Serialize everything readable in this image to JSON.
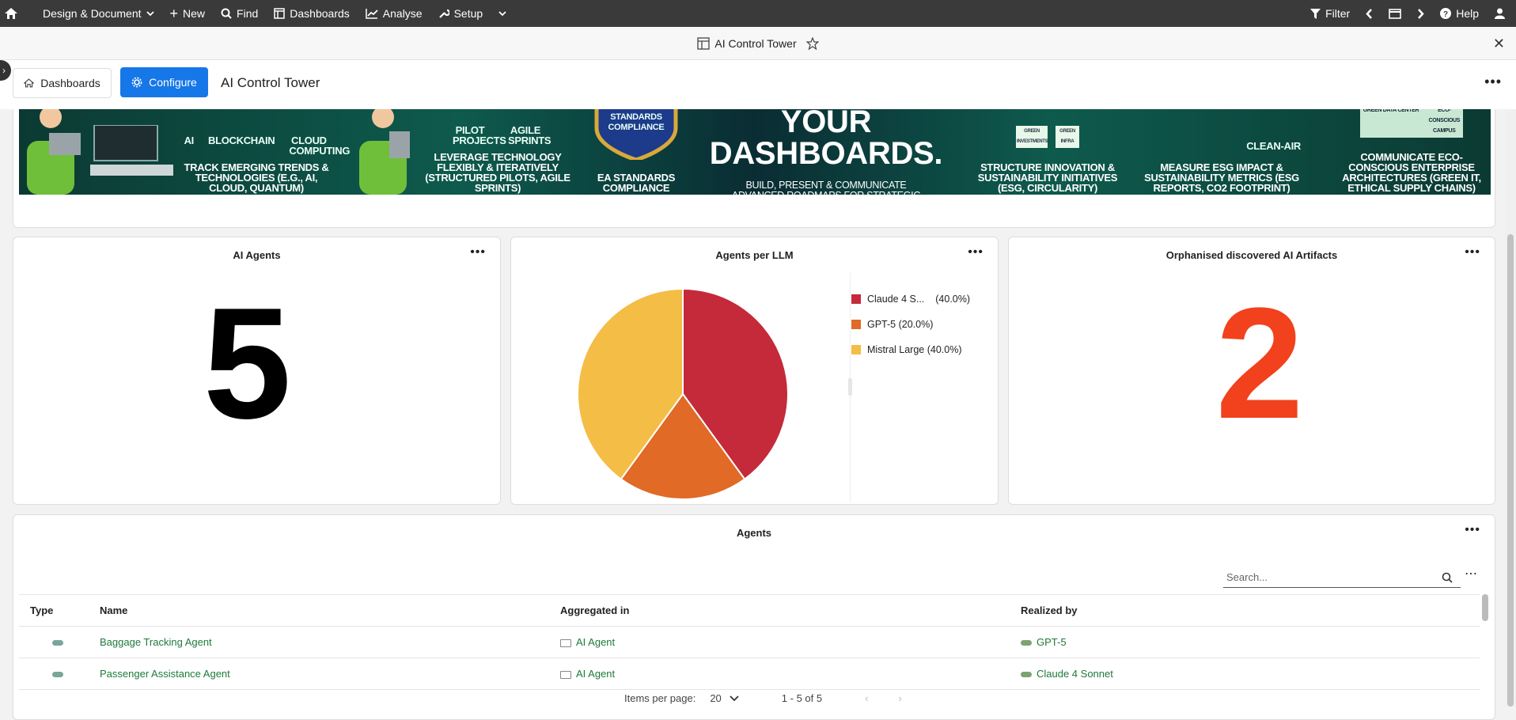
{
  "topnav": {
    "items": [
      {
        "label": "Design & Document",
        "icon": "chevron-down-icon"
      },
      {
        "label": "New",
        "icon": "plus-icon"
      },
      {
        "label": "Find",
        "icon": "search-icon"
      },
      {
        "label": "Dashboards",
        "icon": "dashboard-icon"
      },
      {
        "label": "Analyse",
        "icon": "chart-line-icon"
      },
      {
        "label": "Setup",
        "icon": "wrench-icon"
      }
    ],
    "filter_label": "Filter",
    "help_label": "Help"
  },
  "window": {
    "title": "AI Control Tower"
  },
  "toolbar": {
    "dashboards_label": "Dashboards",
    "configure_label": "Configure",
    "page_title": "AI Control Tower"
  },
  "banner": {
    "headline": "YOUR DASHBOARDS.",
    "subline": "BUILD, PRESENT & COMMUNICATE ADVANCED ROADMAPS FOR STRATEGIC INVESTMENT & TRANSFORMATION VIEWS.",
    "tiles": [
      {
        "icons": [
          "AI",
          "BLOCKCHAIN",
          "CLOUD COMPUTING"
        ],
        "caption": "TRACK EMERGING TRENDS & TECHNOLOGIES (e.g., AI, CLOUD, QUANTUM)"
      },
      {
        "icons": [
          "PILOT PROJECTS",
          "AGILE SPRINTS"
        ],
        "caption": "LEVERAGE TECHNOLOGY FLEXIBLY & ITERATIVELY (STRUCTURED PILOTS, AGILE SPRINTS)"
      },
      {
        "icons": [
          "STANDARDS COMPLIANCE"
        ],
        "caption": "EA STANDARDS COMPLIANCE"
      },
      {
        "icons": [
          "GREEN INVESTMENTS",
          "GREEN INFRA"
        ],
        "caption": "STRUCTURE INNOVATION & SUSTAINABILITY INITIATIVES (ESG, CIRCULARITY)"
      },
      {
        "icons": [
          "CLEAN-AIR"
        ],
        "caption": "MEASURE ESG IMPACT & SUSTAINABILITY METRICS (ESG REPORTS, CO2 FOOTPRINT)"
      },
      {
        "icons": [
          "GREEN DATA CENTER",
          "ECO-CONSCIOUS CAMPUS"
        ],
        "caption": "COMMUNICATE ECO-CONSCIOUS ENTERPRISE ARCHITECTURES (GREEN IT, ETHICAL SUPPLY CHAINS)"
      }
    ]
  },
  "widgets": {
    "ai_agents": {
      "title": "AI Agents",
      "value": "5"
    },
    "agents_per_llm": {
      "title": "Agents per LLM"
    },
    "orphans": {
      "title": "Orphanised discovered AI Artifacts",
      "value": "2"
    }
  },
  "chart_data": {
    "type": "pie",
    "title": "Agents per LLM",
    "categories": [
      "Claude 4 Sonnet",
      "GPT-5",
      "Mistral Large"
    ],
    "values": [
      40.0,
      20.0,
      40.0
    ],
    "colors": [
      "#c52a3a",
      "#e06a26",
      "#f4bd45"
    ],
    "legend_labels": [
      "Claude 4 S...",
      "GPT-5 (20.0%)",
      "Mistral Large (40.0%)"
    ],
    "legend_pct": [
      "(40.0%)",
      "",
      ""
    ],
    "legend": "right"
  },
  "agents_table": {
    "title": "Agents",
    "search_placeholder": "Search...",
    "columns": [
      "Type",
      "Name",
      "Aggregated in",
      "Realized by"
    ],
    "rows": [
      {
        "name": "Baggage Tracking Agent",
        "aggregated_in": "AI Agent",
        "realized_by": "GPT-5"
      },
      {
        "name": "Passenger Assistance Agent",
        "aggregated_in": "AI Agent",
        "realized_by": "Claude 4 Sonnet"
      }
    ],
    "pager": {
      "items_label": "Items per page:",
      "per_page": "20",
      "range": "1 - 5 of 5"
    }
  }
}
